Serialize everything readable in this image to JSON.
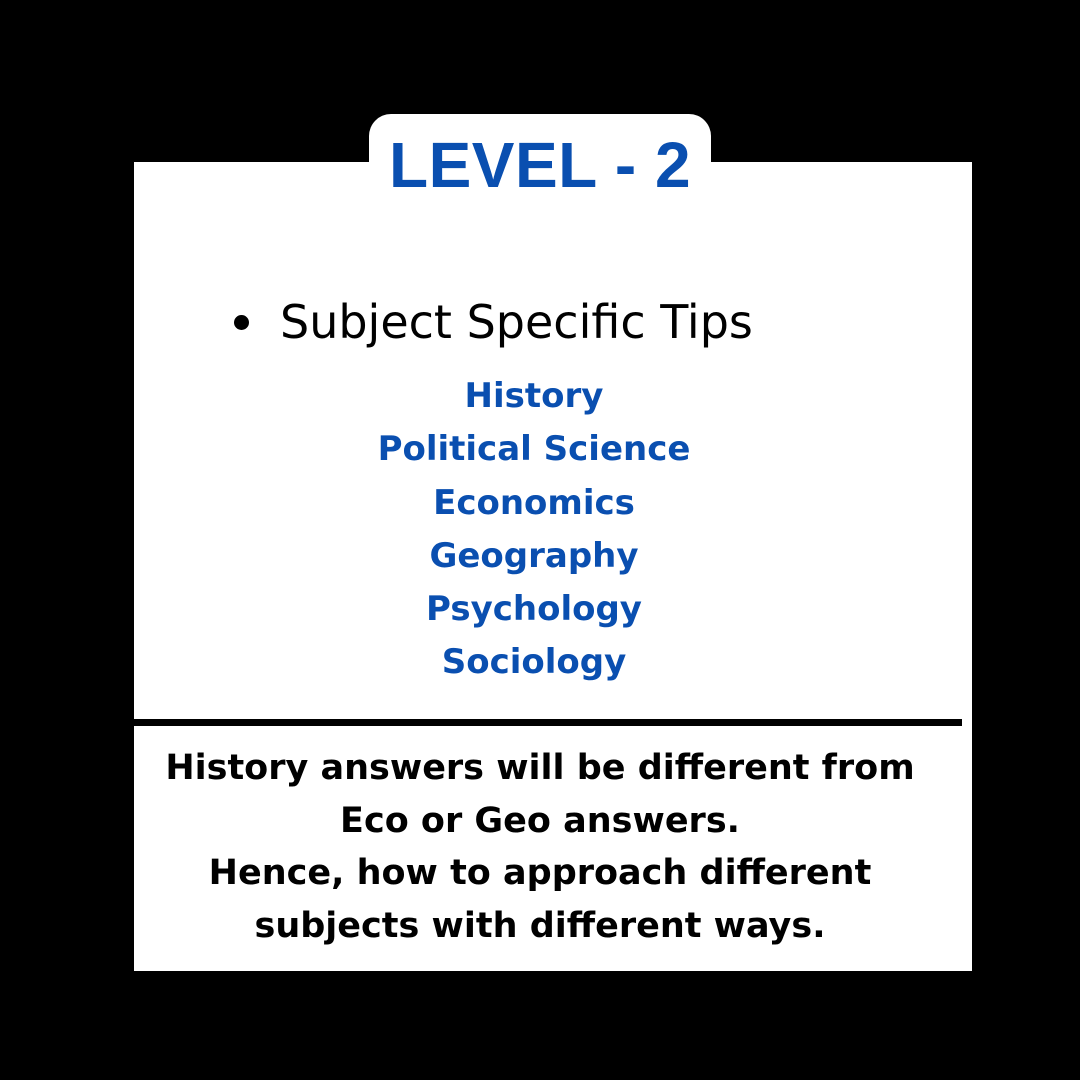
{
  "header": {
    "level_title": "LEVEL - 2"
  },
  "main": {
    "bullet_text": "Subject Specific Tips",
    "subjects": [
      "History",
      "Political Science",
      "Economics",
      "Geography",
      "Psychology",
      "Sociology"
    ]
  },
  "note": {
    "lines": [
      "History answers will be different from",
      "Eco or Geo answers.",
      "Hence, how to approach different",
      "subjects with different ways."
    ]
  },
  "colors": {
    "background": "#000000",
    "card": "#ffffff",
    "accent_blue": "#0a4fb0",
    "text": "#000000"
  },
  "icons": {
    "bullet": "bullet-dot-icon"
  }
}
